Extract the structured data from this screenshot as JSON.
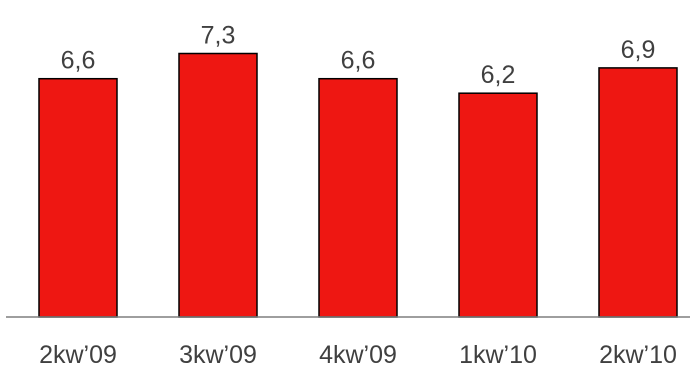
{
  "chart_data": {
    "type": "bar",
    "categories": [
      "2kw’09",
      "3kw’09",
      "4kw’09",
      "1kw’10",
      "2kw’10"
    ],
    "values": [
      6.6,
      7.3,
      6.6,
      6.2,
      6.9
    ],
    "value_labels": [
      "6,6",
      "7,3",
      "6,6",
      "6,2",
      "6,9"
    ],
    "title": "",
    "xlabel": "",
    "ylabel": "",
    "ylim": [
      0,
      8
    ],
    "grid": false,
    "legend": "none",
    "bar_color": "#ee1712",
    "bar_edge_color": "#000000",
    "label_color": "#404040",
    "axis_color": "#7f7f7f"
  }
}
